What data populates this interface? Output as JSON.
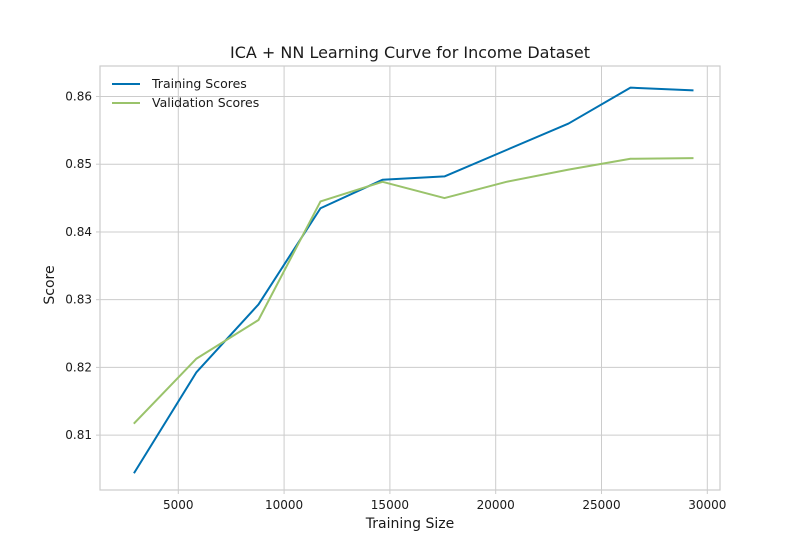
{
  "chart_data": {
    "type": "line",
    "title": "ICA + NN Learning Curve for Income Dataset",
    "xlabel": "Training Size",
    "ylabel": "Score",
    "xlim": [
      1300,
      30600
    ],
    "ylim": [
      0.8019,
      0.8645
    ],
    "xticks": [
      5000,
      10000,
      15000,
      20000,
      25000,
      30000
    ],
    "yticks": [
      0.81,
      0.82,
      0.83,
      0.84,
      0.85,
      0.86
    ],
    "xtick_labels": [
      "5000",
      "10000",
      "15000",
      "20000",
      "25000",
      "30000"
    ],
    "ytick_labels": [
      "0.81",
      "0.82",
      "0.83",
      "0.84",
      "0.85",
      "0.86"
    ],
    "grid": true,
    "legend_position": "top-left",
    "x": [
      2930,
      5860,
      8790,
      11720,
      14650,
      17580,
      20510,
      23440,
      26370,
      29300
    ],
    "series": [
      {
        "name": "Training Scores",
        "color": "#0072b2",
        "values": [
          0.8045,
          0.8193,
          0.8293,
          0.8435,
          0.8477,
          0.8482,
          0.8521,
          0.856,
          0.8613,
          0.8609
        ]
      },
      {
        "name": "Validation Scores",
        "color": "#9ac36b",
        "values": [
          0.8118,
          0.8213,
          0.827,
          0.8445,
          0.8474,
          0.845,
          0.8474,
          0.8492,
          0.8508,
          0.8509
        ]
      }
    ]
  }
}
